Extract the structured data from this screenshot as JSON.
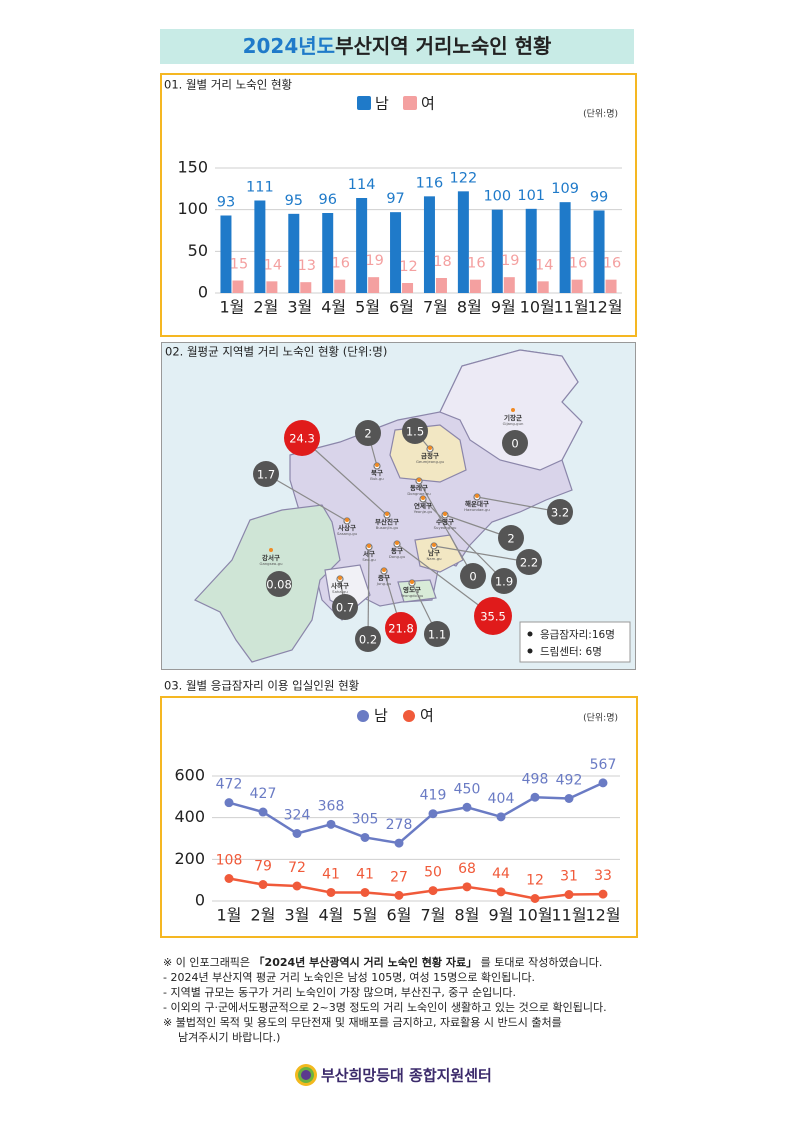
{
  "header": {
    "title_highlight": "2024년도",
    "title_rest": "부산지역 거리노숙인 현황"
  },
  "sections": {
    "s1": "01. 월별 거리 노숙인 현황",
    "s2": "02. 월평균 지역별 거리 노숙인 현황 (단위:명)",
    "s3": "03. 월별 응급잠자리 이용 입실인원 현황"
  },
  "chart_data": [
    {
      "type": "bar",
      "unit": "(단위:명)",
      "categories": [
        "1월",
        "2월",
        "3월",
        "4월",
        "5월",
        "6월",
        "7월",
        "8월",
        "9월",
        "10월",
        "11월",
        "12월"
      ],
      "series": [
        {
          "name": "남",
          "color": "#1f7ac9",
          "values": [
            93,
            111,
            95,
            96,
            114,
            97,
            116,
            122,
            100,
            101,
            109,
            99
          ]
        },
        {
          "name": "여",
          "color": "#f4a0a0",
          "values": [
            15,
            14,
            13,
            16,
            19,
            12,
            18,
            16,
            19,
            14,
            16,
            16
          ]
        }
      ],
      "ylim": [
        0,
        150
      ],
      "yticks": [
        0,
        50,
        100,
        150
      ],
      "grid": true
    },
    {
      "type": "line",
      "unit": "(단위:명)",
      "categories": [
        "1월",
        "2월",
        "3월",
        "4월",
        "5월",
        "6월",
        "7월",
        "8월",
        "9월",
        "10월",
        "11월",
        "12월"
      ],
      "series": [
        {
          "name": "남",
          "color": "#6a7bc4",
          "values": [
            472,
            427,
            324,
            368,
            305,
            278,
            419,
            450,
            404,
            498,
            492,
            567
          ]
        },
        {
          "name": "여",
          "color": "#f05a3a",
          "values": [
            108,
            79,
            72,
            41,
            41,
            27,
            50,
            68,
            44,
            12,
            31,
            33
          ]
        }
      ],
      "ylim": [
        0,
        600
      ],
      "yticks": [
        0,
        200,
        400,
        600
      ],
      "grid": true
    }
  ],
  "map": {
    "districts": [
      {
        "name": "기장군",
        "en": "Gijang-gun"
      },
      {
        "name": "북구",
        "en": "Buk-gu"
      },
      {
        "name": "금정구",
        "en": "Geumjeong-gu"
      },
      {
        "name": "동래구",
        "en": "Dongnae-gu"
      },
      {
        "name": "해운대구",
        "en": "Haeundae-gu"
      },
      {
        "name": "연제구",
        "en": "Yeonje-gu"
      },
      {
        "name": "부산진구",
        "en": "Busanjin-gu"
      },
      {
        "name": "수영구",
        "en": "Suyeong-gu"
      },
      {
        "name": "사상구",
        "en": "Sasang-gu"
      },
      {
        "name": "동구",
        "en": "Dong-gu"
      },
      {
        "name": "남구",
        "en": "Nam-gu"
      },
      {
        "name": "서구",
        "en": "Seo-gu"
      },
      {
        "name": "강서구",
        "en": "Gangseo-gu"
      },
      {
        "name": "중구",
        "en": "Jung-gu"
      },
      {
        "name": "영도구",
        "en": "Yeongdo-gu"
      },
      {
        "name": "사하구",
        "en": "Saha-gu"
      }
    ],
    "bubbles": [
      {
        "value": 24.3,
        "color": "#e01b1b"
      },
      {
        "value": 2,
        "color": "#555555"
      },
      {
        "value": 1.5,
        "color": "#555555"
      },
      {
        "value": 0,
        "color": "#555555"
      },
      {
        "value": 1.7,
        "color": "#555555"
      },
      {
        "value": 3.2,
        "color": "#555555"
      },
      {
        "value": 2,
        "color": "#555555"
      },
      {
        "value": 2.2,
        "color": "#555555"
      },
      {
        "value": 0,
        "color": "#555555"
      },
      {
        "value": 1.9,
        "color": "#555555"
      },
      {
        "value": 0.08,
        "color": "#555555"
      },
      {
        "value": 0.7,
        "color": "#555555"
      },
      {
        "value": 35.5,
        "color": "#e01b1b"
      },
      {
        "value": 21.8,
        "color": "#e01b1b"
      },
      {
        "value": 1.1,
        "color": "#555555"
      },
      {
        "value": 0.2,
        "color": "#555555"
      }
    ],
    "legend": [
      "응급잠자리:16명",
      "드림센터: 6명"
    ]
  },
  "note_intro": {
    "before": "※ 이 인포그래픽은 ",
    "bold": "「2024년 부산광역시 거리 노숙인 현황 자료」",
    "after": " 를 토대로 작성하였습니다."
  },
  "notes": [
    "- 2024년 부산지역 평균 거리 노숙인은 남성 105명, 여성 15명으로 확인됩니다.",
    "- 지역별 규모는 동구가 거리 노숙인이 가장 많으며, 부산진구, 중구 순입니다.",
    "- 이외의 구·군에서도평균적으로 2~3명 정도의 거리 노숙인이 생활하고 있는 것으로 확인됩니다.",
    "※ 불법적인 목적 및 용도의 무단전재 및 재배포를 금지하고, 자료활용 시 반드시 출처를",
    "남겨주시기 바랍니다.)"
  ],
  "footer": "부산희망등대 종합지원센터"
}
